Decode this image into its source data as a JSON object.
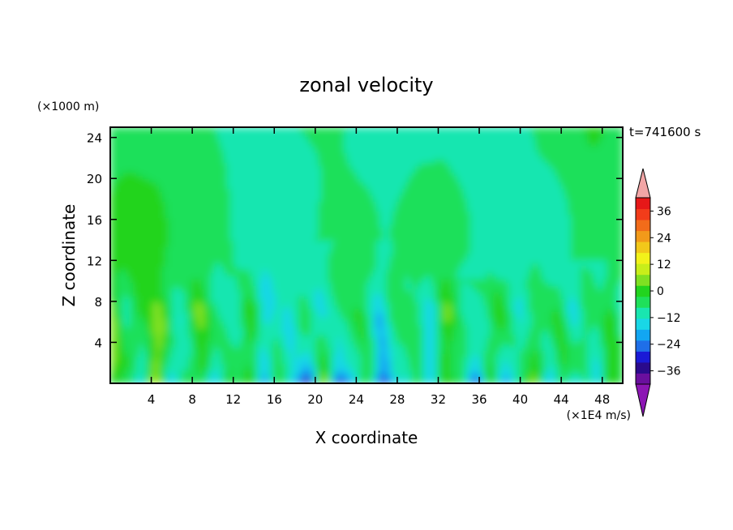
{
  "chart_data": {
    "type": "heatmap",
    "title": "zonal velocity",
    "xlabel": "X coordinate",
    "ylabel": "Z coordinate",
    "x_unit": "(×1E4 m/s)",
    "y_unit": "(×1000 m)",
    "time_label": "t=741600 s",
    "xlim": [
      0,
      50
    ],
    "ylim": [
      0,
      25
    ],
    "x_ticks": [
      4,
      8,
      12,
      16,
      20,
      24,
      28,
      32,
      36,
      40,
      44,
      48
    ],
    "y_ticks": [
      4,
      8,
      12,
      16,
      20,
      24
    ],
    "colorbar": {
      "min": -42,
      "max": 42,
      "step": 6,
      "labels": [
        "36",
        "24",
        "12",
        "0",
        "−12",
        "−24",
        "−36"
      ],
      "label_values": [
        36,
        24,
        12,
        0,
        -12,
        -24,
        -36
      ],
      "colors": [
        "#6a0f9e",
        "#2a0a8c",
        "#1a1ad6",
        "#1f6fe8",
        "#12a6f2",
        "#19d7e6",
        "#19e6b0",
        "#1fe05a",
        "#22d41e",
        "#7fe022",
        "#c8ee1a",
        "#f2f21a",
        "#f2c81a",
        "#f29a1a",
        "#f26c1a",
        "#f23c1a",
        "#e61818"
      ],
      "over_color": "#f2a6a6",
      "under_color": "#8c16b4"
    }
  }
}
